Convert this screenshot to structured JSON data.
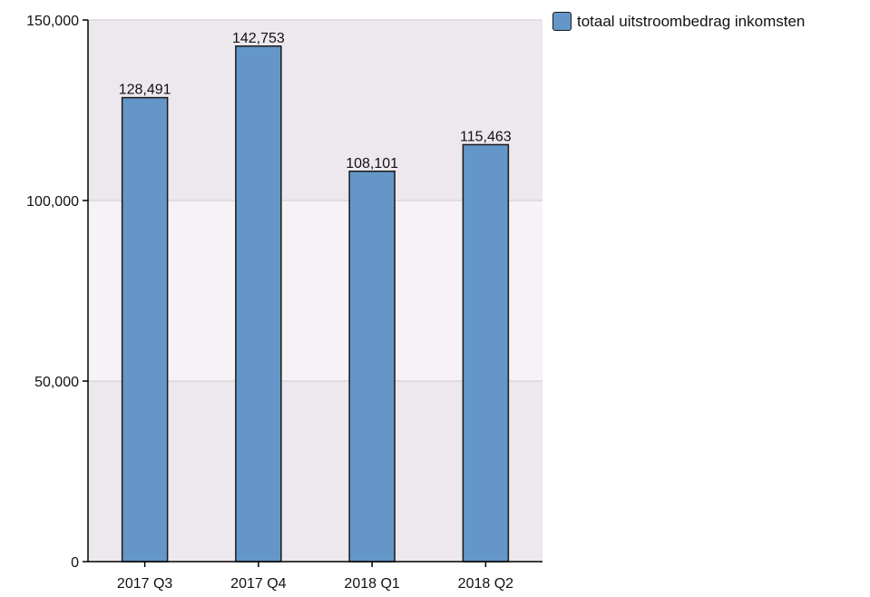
{
  "chart_data": {
    "type": "bar",
    "categories": [
      "2017 Q3",
      "2017 Q4",
      "2018 Q1",
      "2018 Q2"
    ],
    "series": [
      {
        "name": "totaal uitstroombedrag inkomsten",
        "values": [
          128491,
          142753,
          108101,
          115463
        ]
      }
    ],
    "data_labels": [
      "128,491",
      "142,753",
      "108,101",
      "115,463"
    ],
    "y_ticks": [
      0,
      50000,
      100000,
      150000
    ],
    "y_tick_labels": [
      "0",
      "50,000",
      "100,000",
      "150,000"
    ],
    "ylim": [
      0,
      150000
    ],
    "grid": true,
    "legend_position": "top-right",
    "colors": {
      "bar": "#6497c8",
      "bar_border": "#1a1a1a",
      "band_dark": "#ede8ed",
      "band_light": "#f6f2f6",
      "gridline": "#cfc9cf"
    }
  }
}
